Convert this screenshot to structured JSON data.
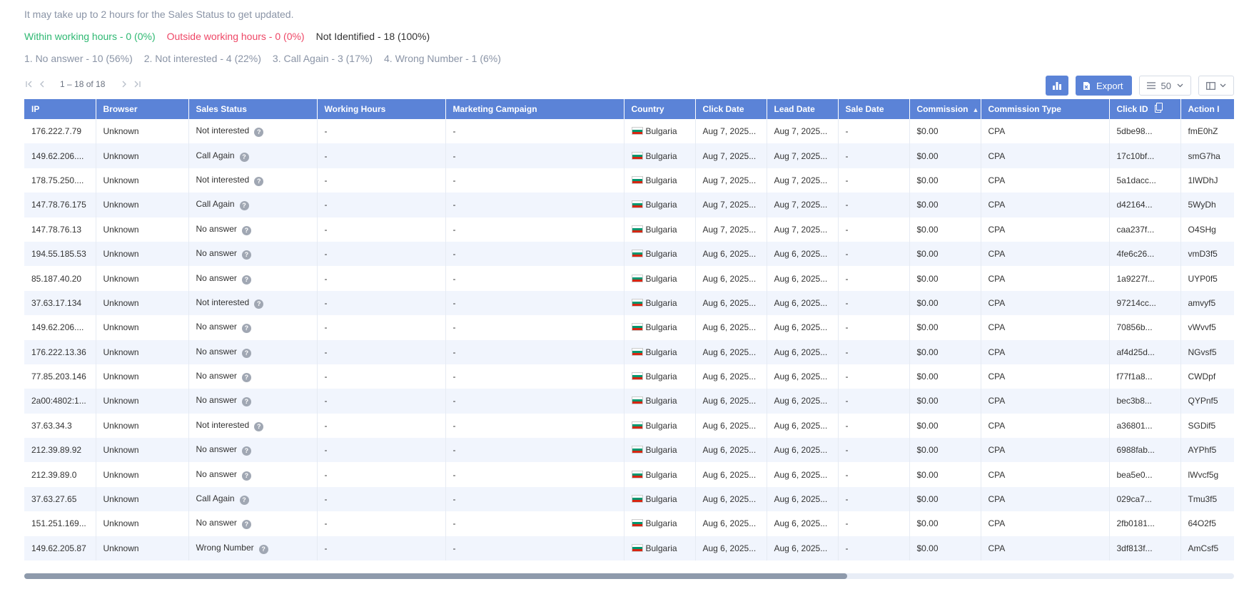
{
  "note": "It may take up to 2 hours for the Sales Status to get updated.",
  "hours": {
    "within": "Within working hours - 0 (0%)",
    "outside": "Outside working hours - 0 (0%)",
    "not_identified": "Not Identified - 18 (100%)"
  },
  "statuses": [
    "1. No answer - 10 (56%)",
    "2. Not interested - 4 (22%)",
    "3. Call Again - 3 (17%)",
    "4. Wrong Number - 1 (6%)"
  ],
  "pager": {
    "range": "1 – 18 of 18"
  },
  "toolbar": {
    "export_label": "Export",
    "page_size": "50"
  },
  "colors": {
    "header": "#5b83d7",
    "within": "#2eb872",
    "outside": "#ee4766",
    "row_alt": "#f1f5fd"
  },
  "columns": [
    "IP",
    "Browser",
    "Sales Status",
    "Working Hours",
    "Marketing Campaign",
    "Country",
    "Click Date",
    "Lead Date",
    "Sale Date",
    "Commission",
    "Commission Type",
    "Click ID",
    "Action I"
  ],
  "rows": [
    {
      "ip": "176.222.7.79",
      "browser": "Unknown",
      "status": "Not interested",
      "hours": "-",
      "campaign": "-",
      "country": "Bulgaria",
      "click_date": "Aug 7, 2025...",
      "lead_date": "Aug 7, 2025...",
      "sale_date": "-",
      "commission": "$0.00",
      "type": "CPA",
      "click_id": "5dbe98...",
      "action": "fmE0hZ"
    },
    {
      "ip": "149.62.206....",
      "browser": "Unknown",
      "status": "Call Again",
      "hours": "-",
      "campaign": "-",
      "country": "Bulgaria",
      "click_date": "Aug 7, 2025...",
      "lead_date": "Aug 7, 2025...",
      "sale_date": "-",
      "commission": "$0.00",
      "type": "CPA",
      "click_id": "17c10bf...",
      "action": "smG7ha"
    },
    {
      "ip": "178.75.250....",
      "browser": "Unknown",
      "status": "Not interested",
      "hours": "-",
      "campaign": "-",
      "country": "Bulgaria",
      "click_date": "Aug 7, 2025...",
      "lead_date": "Aug 7, 2025...",
      "sale_date": "-",
      "commission": "$0.00",
      "type": "CPA",
      "click_id": "5a1dacc...",
      "action": "1lWDhJ"
    },
    {
      "ip": "147.78.76.175",
      "browser": "Unknown",
      "status": "Call Again",
      "hours": "-",
      "campaign": "-",
      "country": "Bulgaria",
      "click_date": "Aug 7, 2025...",
      "lead_date": "Aug 7, 2025...",
      "sale_date": "-",
      "commission": "$0.00",
      "type": "CPA",
      "click_id": "d42164...",
      "action": "5WyDh"
    },
    {
      "ip": "147.78.76.13",
      "browser": "Unknown",
      "status": "No answer",
      "hours": "-",
      "campaign": "-",
      "country": "Bulgaria",
      "click_date": "Aug 7, 2025...",
      "lead_date": "Aug 7, 2025...",
      "sale_date": "-",
      "commission": "$0.00",
      "type": "CPA",
      "click_id": "caa237f...",
      "action": "O4SHg"
    },
    {
      "ip": "194.55.185.53",
      "browser": "Unknown",
      "status": "No answer",
      "hours": "-",
      "campaign": "-",
      "country": "Bulgaria",
      "click_date": "Aug 6, 2025...",
      "lead_date": "Aug 6, 2025...",
      "sale_date": "-",
      "commission": "$0.00",
      "type": "CPA",
      "click_id": "4fe6c26...",
      "action": "vmD3f5"
    },
    {
      "ip": "85.187.40.20",
      "browser": "Unknown",
      "status": "No answer",
      "hours": "-",
      "campaign": "-",
      "country": "Bulgaria",
      "click_date": "Aug 6, 2025...",
      "lead_date": "Aug 6, 2025...",
      "sale_date": "-",
      "commission": "$0.00",
      "type": "CPA",
      "click_id": "1a9227f...",
      "action": "UYP0f5"
    },
    {
      "ip": "37.63.17.134",
      "browser": "Unknown",
      "status": "Not interested",
      "hours": "-",
      "campaign": "-",
      "country": "Bulgaria",
      "click_date": "Aug 6, 2025...",
      "lead_date": "Aug 6, 2025...",
      "sale_date": "-",
      "commission": "$0.00",
      "type": "CPA",
      "click_id": "97214cc...",
      "action": "amvyf5"
    },
    {
      "ip": "149.62.206....",
      "browser": "Unknown",
      "status": "No answer",
      "hours": "-",
      "campaign": "-",
      "country": "Bulgaria",
      "click_date": "Aug 6, 2025...",
      "lead_date": "Aug 6, 2025...",
      "sale_date": "-",
      "commission": "$0.00",
      "type": "CPA",
      "click_id": "70856b...",
      "action": "vWvvf5"
    },
    {
      "ip": "176.222.13.36",
      "browser": "Unknown",
      "status": "No answer",
      "hours": "-",
      "campaign": "-",
      "country": "Bulgaria",
      "click_date": "Aug 6, 2025...",
      "lead_date": "Aug 6, 2025...",
      "sale_date": "-",
      "commission": "$0.00",
      "type": "CPA",
      "click_id": "af4d25d...",
      "action": "NGvsf5"
    },
    {
      "ip": "77.85.203.146",
      "browser": "Unknown",
      "status": "No answer",
      "hours": "-",
      "campaign": "-",
      "country": "Bulgaria",
      "click_date": "Aug 6, 2025...",
      "lead_date": "Aug 6, 2025...",
      "sale_date": "-",
      "commission": "$0.00",
      "type": "CPA",
      "click_id": "f77f1a8...",
      "action": "CWDpf"
    },
    {
      "ip": "2a00:4802:1...",
      "browser": "Unknown",
      "status": "No answer",
      "hours": "-",
      "campaign": "-",
      "country": "Bulgaria",
      "click_date": "Aug 6, 2025...",
      "lead_date": "Aug 6, 2025...",
      "sale_date": "-",
      "commission": "$0.00",
      "type": "CPA",
      "click_id": "bec3b8...",
      "action": "QYPnf5"
    },
    {
      "ip": "37.63.34.3",
      "browser": "Unknown",
      "status": "Not interested",
      "hours": "-",
      "campaign": "-",
      "country": "Bulgaria",
      "click_date": "Aug 6, 2025...",
      "lead_date": "Aug 6, 2025...",
      "sale_date": "-",
      "commission": "$0.00",
      "type": "CPA",
      "click_id": "a36801...",
      "action": "SGDif5"
    },
    {
      "ip": "212.39.89.92",
      "browser": "Unknown",
      "status": "No answer",
      "hours": "-",
      "campaign": "-",
      "country": "Bulgaria",
      "click_date": "Aug 6, 2025...",
      "lead_date": "Aug 6, 2025...",
      "sale_date": "-",
      "commission": "$0.00",
      "type": "CPA",
      "click_id": "6988fab...",
      "action": "AYPhf5"
    },
    {
      "ip": "212.39.89.0",
      "browser": "Unknown",
      "status": "No answer",
      "hours": "-",
      "campaign": "-",
      "country": "Bulgaria",
      "click_date": "Aug 6, 2025...",
      "lead_date": "Aug 6, 2025...",
      "sale_date": "-",
      "commission": "$0.00",
      "type": "CPA",
      "click_id": "bea5e0...",
      "action": "lWvcf5g"
    },
    {
      "ip": "37.63.27.65",
      "browser": "Unknown",
      "status": "Call Again",
      "hours": "-",
      "campaign": "-",
      "country": "Bulgaria",
      "click_date": "Aug 6, 2025...",
      "lead_date": "Aug 6, 2025...",
      "sale_date": "-",
      "commission": "$0.00",
      "type": "CPA",
      "click_id": "029ca7...",
      "action": "Tmu3f5"
    },
    {
      "ip": "151.251.169...",
      "browser": "Unknown",
      "status": "No answer",
      "hours": "-",
      "campaign": "-",
      "country": "Bulgaria",
      "click_date": "Aug 6, 2025...",
      "lead_date": "Aug 6, 2025...",
      "sale_date": "-",
      "commission": "$0.00",
      "type": "CPA",
      "click_id": "2fb0181...",
      "action": "64O2f5"
    },
    {
      "ip": "149.62.205.87",
      "browser": "Unknown",
      "status": "Wrong Number",
      "hours": "-",
      "campaign": "-",
      "country": "Bulgaria",
      "click_date": "Aug 6, 2025...",
      "lead_date": "Aug 6, 2025...",
      "sale_date": "-",
      "commission": "$0.00",
      "type": "CPA",
      "click_id": "3df813f...",
      "action": "AmCsf5"
    }
  ],
  "scrollbar": {
    "visible_fraction": 0.68
  }
}
